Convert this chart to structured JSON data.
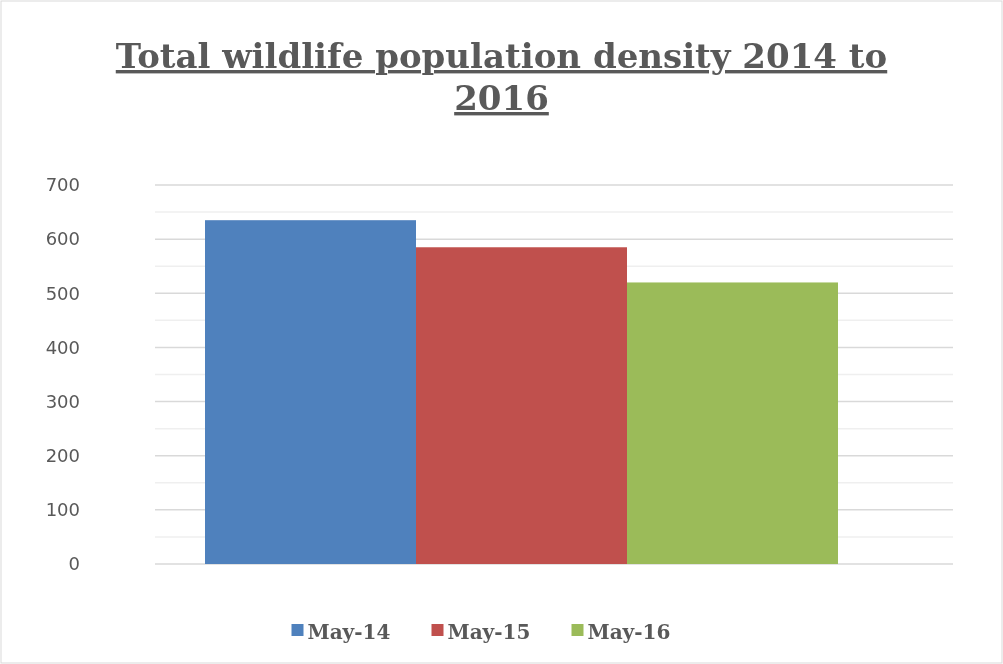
{
  "chart_data": {
    "type": "bar",
    "title": "Total wildlife population density 2014 to 2016",
    "categories": [
      null
    ],
    "series": [
      {
        "name": "May-14",
        "color": "#4f81bd",
        "values": [
          635
        ]
      },
      {
        "name": "May-15",
        "color": "#c0504d",
        "values": [
          585
        ]
      },
      {
        "name": "May-16",
        "color": "#9bbb59",
        "values": [
          520
        ]
      }
    ],
    "ylim": [
      0,
      700
    ],
    "yticks": [
      0,
      {
        "value": 50,
        "label": null
      },
      100,
      {
        "value": 150,
        "label": null
      },
      200,
      {
        "value": 250,
        "label": null
      },
      300,
      {
        "value": 350,
        "label": null
      },
      400,
      {
        "value": 450,
        "label": null
      },
      500,
      {
        "value": 550,
        "label": null
      },
      600,
      {
        "value": 650,
        "label": null
      },
      700
    ],
    "grid": true,
    "legend": "bottom"
  }
}
